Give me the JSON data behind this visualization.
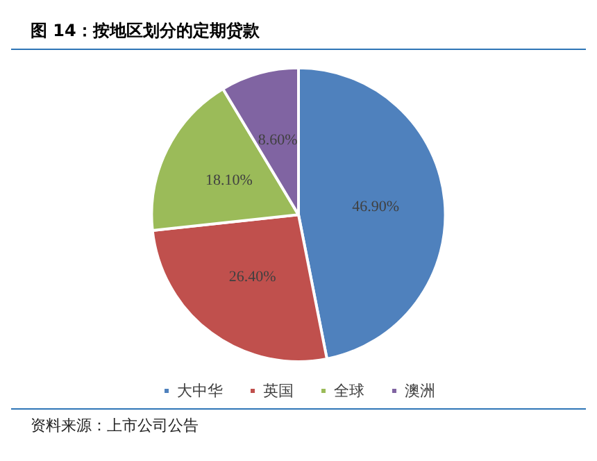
{
  "chart_data": {
    "type": "pie",
    "title": "图 14：按地区划分的定期贷款",
    "categories": [
      "大中华",
      "英国",
      "全球",
      "澳洲"
    ],
    "values": [
      46.9,
      26.4,
      18.1,
      8.6
    ],
    "value_labels": [
      "46.90%",
      "26.40%",
      "18.10%",
      "8.60%"
    ],
    "colors": [
      "#4f81bd",
      "#c0504d",
      "#9bbb59",
      "#8064a2"
    ],
    "legend": "bottom",
    "annotations": [
      "资料来源：上市公司公告"
    ]
  }
}
